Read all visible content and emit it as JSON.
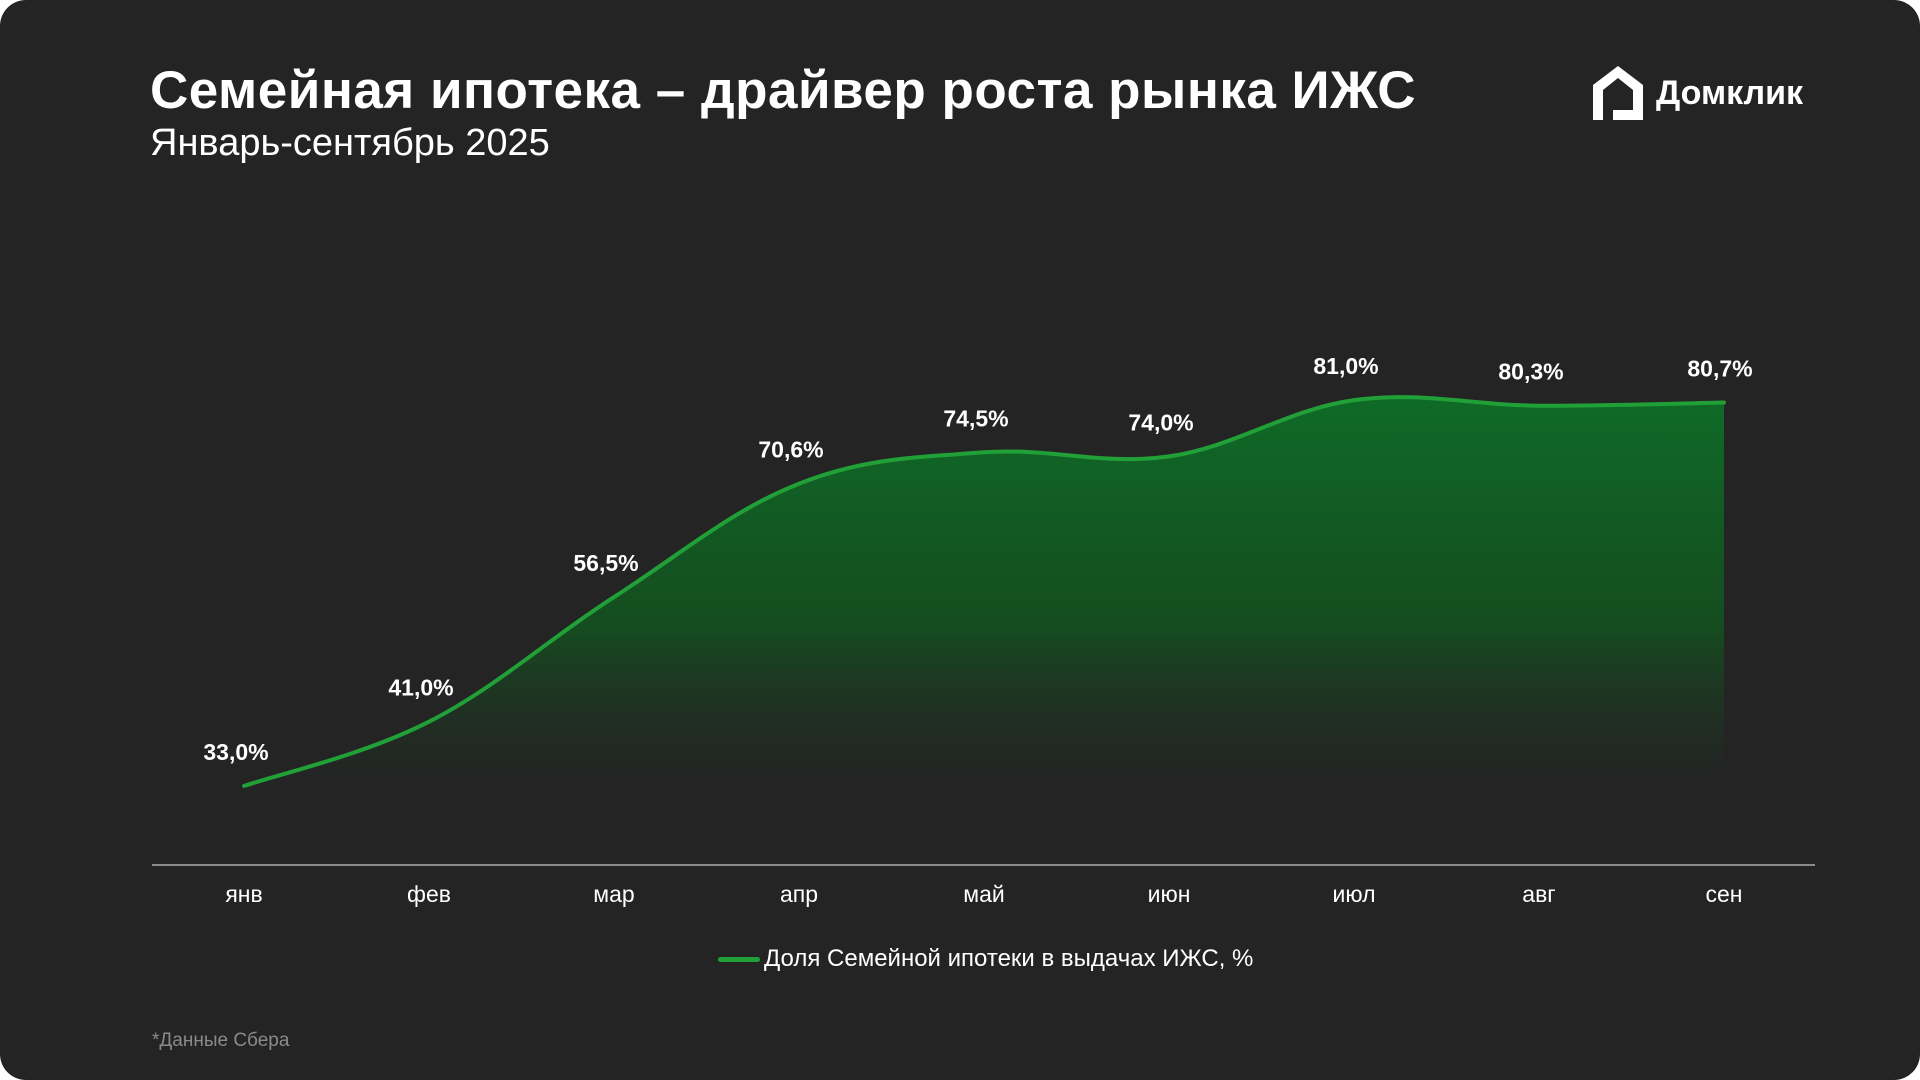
{
  "header": {
    "title": "Семейная ипотека – драйвер роста рынка ИЖС",
    "subtitle": "Январь-сентябрь 2025"
  },
  "logo": {
    "text": "Домклик",
    "icon": "house-logo-icon"
  },
  "footnote": "*Данные Сбера",
  "colors": {
    "background": "#242424",
    "line": "#21a038",
    "area_top": "#0f6b27",
    "axis": "#8a8a8a",
    "text": "#ffffff"
  },
  "chart_data": {
    "type": "area",
    "title": "",
    "xlabel": "",
    "ylabel": "",
    "categories": [
      "янв",
      "фев",
      "мар",
      "апр",
      "май",
      "июн",
      "июл",
      "авг",
      "сен"
    ],
    "series": [
      {
        "name": "Доля Семейной ипотеки в выдачах ИЖС, %",
        "values": [
          33.0,
          41.0,
          56.5,
          70.6,
          74.5,
          74.0,
          81.0,
          80.3,
          80.7
        ],
        "labels": [
          "33,0%",
          "41,0%",
          "56,5%",
          "70,6%",
          "74,5%",
          "74,0%",
          "81,0%",
          "80,3%",
          "80,7%"
        ]
      }
    ],
    "grid": false,
    "legend_position": "bottom-center"
  }
}
